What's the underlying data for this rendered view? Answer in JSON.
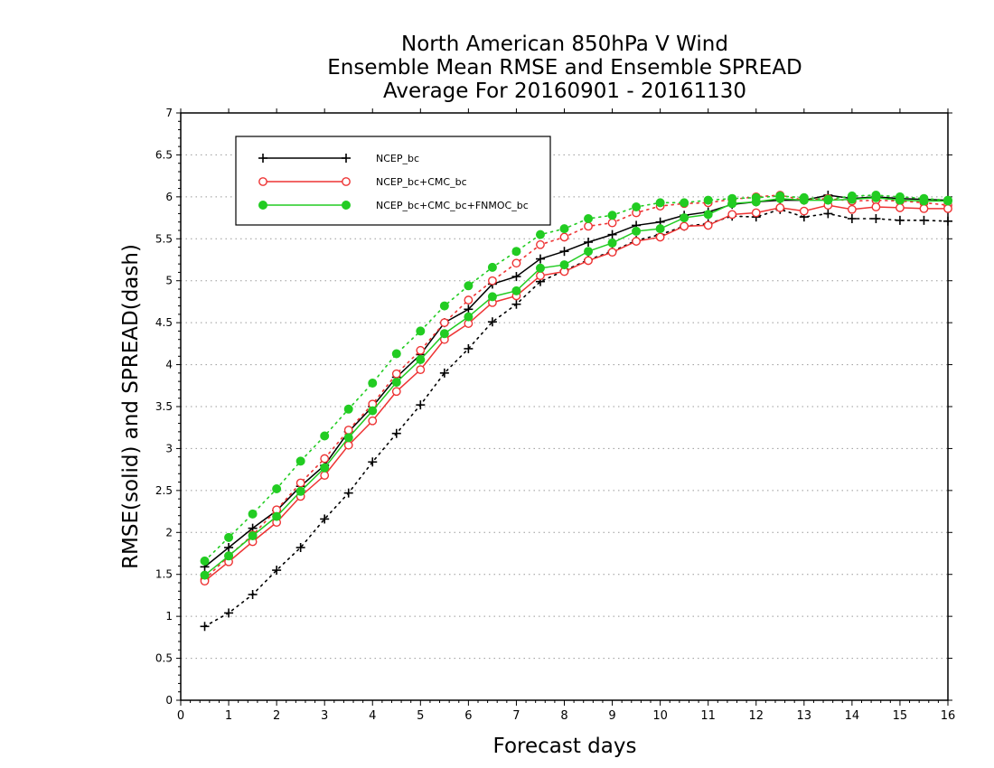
{
  "chart_data": {
    "type": "line",
    "title": [
      "North American 850hPa V Wind",
      "Ensemble Mean RMSE and Ensemble SPREAD",
      "Average For 20160901 - 20161130"
    ],
    "xlabel": "Forecast days",
    "ylabel": "RMSE(solid) and SPREAD(dash)",
    "xlim": [
      0,
      16
    ],
    "ylim": [
      0,
      7
    ],
    "xticks": [
      "0",
      "1",
      "2",
      "3",
      "4",
      "5",
      "6",
      "7",
      "8",
      "9",
      "10",
      "11",
      "12",
      "13",
      "14",
      "15",
      "16"
    ],
    "yticks": [
      "0",
      "0.5",
      "1",
      "1.5",
      "2",
      "2.5",
      "3",
      "3.5",
      "4",
      "4.5",
      "5",
      "5.5",
      "6",
      "6.5",
      "7"
    ],
    "grid": true,
    "legend_position": "top-left",
    "x": [
      0.5,
      1,
      1.5,
      2,
      2.5,
      3,
      3.5,
      4,
      4.5,
      5,
      5.5,
      6,
      6.5,
      7,
      7.5,
      8,
      8.5,
      9,
      9.5,
      10,
      10.5,
      11,
      11.5,
      12,
      12.5,
      13,
      13.5,
      14,
      14.5,
      15,
      15.5,
      16
    ],
    "series": [
      {
        "name": "NCEP_bc",
        "color": "#000000",
        "marker": "plus",
        "rmse": [
          1.59,
          1.82,
          2.05,
          2.26,
          2.55,
          2.8,
          3.2,
          3.5,
          3.85,
          4.12,
          4.5,
          4.66,
          4.96,
          5.05,
          5.26,
          5.35,
          5.46,
          5.55,
          5.66,
          5.7,
          5.78,
          5.82,
          5.91,
          5.94,
          5.96,
          5.96,
          6.02,
          5.98,
          6.0,
          5.98,
          5.97,
          5.96
        ],
        "spread": [
          0.88,
          1.04,
          1.26,
          1.55,
          1.82,
          2.16,
          2.47,
          2.84,
          3.18,
          3.52,
          3.9,
          4.19,
          4.51,
          4.72,
          4.99,
          5.12,
          5.25,
          5.35,
          5.48,
          5.55,
          5.65,
          5.68,
          5.77,
          5.76,
          5.85,
          5.76,
          5.8,
          5.74,
          5.74,
          5.72,
          5.72,
          5.71
        ]
      },
      {
        "name": "NCEP_bc+CMC_bc",
        "color": "#ee3333",
        "marker": "open-circle",
        "rmse": [
          1.42,
          1.65,
          1.89,
          2.12,
          2.43,
          2.68,
          3.04,
          3.33,
          3.68,
          3.94,
          4.3,
          4.49,
          4.74,
          4.82,
          5.06,
          5.11,
          5.24,
          5.34,
          5.47,
          5.52,
          5.65,
          5.66,
          5.79,
          5.81,
          5.87,
          5.83,
          5.9,
          5.85,
          5.88,
          5.87,
          5.86,
          5.86
        ],
        "spread": [
          1.44,
          1.72,
          1.97,
          2.27,
          2.59,
          2.88,
          3.22,
          3.53,
          3.89,
          4.17,
          4.5,
          4.77,
          5.0,
          5.21,
          5.43,
          5.52,
          5.65,
          5.69,
          5.81,
          5.89,
          5.92,
          5.93,
          5.97,
          6.0,
          6.02,
          5.96,
          5.98,
          5.95,
          5.96,
          5.95,
          5.93,
          5.9
        ]
      },
      {
        "name": "NCEP_bc+CMC_bc+FNMOC_bc",
        "color": "#22cc22",
        "marker": "filled-circle",
        "rmse": [
          1.49,
          1.72,
          1.96,
          2.19,
          2.49,
          2.77,
          3.13,
          3.45,
          3.79,
          4.06,
          4.37,
          4.57,
          4.81,
          4.88,
          5.15,
          5.19,
          5.35,
          5.45,
          5.59,
          5.62,
          5.75,
          5.79,
          5.92,
          5.94,
          5.98,
          5.96,
          5.96,
          5.97,
          5.99,
          5.96,
          5.95,
          5.95
        ],
        "spread": [
          1.66,
          1.94,
          2.22,
          2.52,
          2.85,
          3.15,
          3.47,
          3.78,
          4.13,
          4.4,
          4.7,
          4.94,
          5.16,
          5.35,
          5.55,
          5.62,
          5.74,
          5.78,
          5.88,
          5.93,
          5.93,
          5.96,
          5.98,
          5.99,
          6.01,
          5.99,
          5.97,
          6.01,
          6.02,
          6.0,
          5.98,
          5.96
        ]
      }
    ]
  }
}
